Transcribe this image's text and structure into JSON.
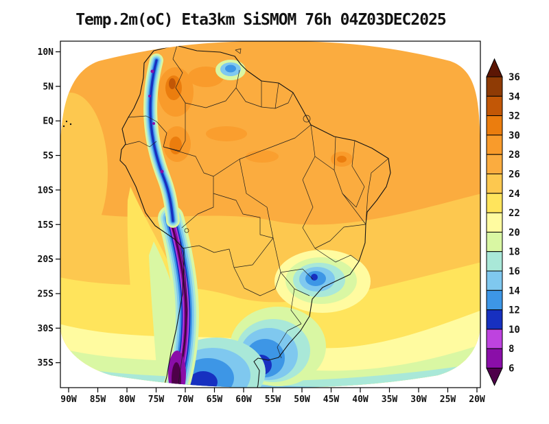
{
  "title": "Temp.2m(oC) Eta3km SiSMOM 76h 04Z03DEC2025",
  "axes": {
    "lat_labels": [
      "10N",
      "5N",
      "EQ",
      "5S",
      "10S",
      "15S",
      "20S",
      "25S",
      "30S",
      "35S"
    ],
    "lon_labels": [
      "90W",
      "85W",
      "80W",
      "75W",
      "70W",
      "65W",
      "60W",
      "55W",
      "50W",
      "45W",
      "40W",
      "35W",
      "30W",
      "25W",
      "20W"
    ]
  },
  "colorbar": {
    "tick_labels": [
      "36",
      "34",
      "32",
      "30",
      "28",
      "26",
      "24",
      "22",
      "20",
      "18",
      "16",
      "14",
      "12",
      "10",
      "8",
      "6"
    ],
    "colors_top_to_bottom": [
      "#5C1604",
      "#8F3B05",
      "#C25706",
      "#EB7D0E",
      "#F99B2B",
      "#FBAC3F",
      "#FDC84F",
      "#FFE45C",
      "#FFFBA0",
      "#D9F7A3",
      "#A9E8D8",
      "#7FC8EF",
      "#3D96E6",
      "#1730C0",
      "#BE43DF",
      "#8A0EA8",
      "#4E004A"
    ]
  },
  "chart_data": {
    "type": "heatmap",
    "title": "Temp.2m(oC) Eta3km SiSMOM 76h 04Z03DEC2025",
    "variable": "Temp.2m (oC)",
    "model": "Eta3km",
    "system": "SiSMOM",
    "forecast_hour": "76h",
    "valid_time": "04Z03DEC2025",
    "x_tick_labels": [
      "90W",
      "85W",
      "80W",
      "75W",
      "70W",
      "65W",
      "60W",
      "55W",
      "50W",
      "45W",
      "40W",
      "35W",
      "30W",
      "25W",
      "20W"
    ],
    "y_tick_labels": [
      "10N",
      "5N",
      "EQ",
      "5S",
      "10S",
      "15S",
      "20S",
      "25S",
      "30S",
      "35S"
    ],
    "colorbar_levels": [
      36,
      34,
      32,
      30,
      28,
      26,
      24,
      22,
      20,
      18,
      16,
      14,
      12,
      10,
      8,
      6
    ],
    "colorbar_colors_top_to_bottom": [
      "#5C1604",
      "#8F3B05",
      "#C25706",
      "#EB7D0E",
      "#F99B2B",
      "#FBAC3F",
      "#FDC84F",
      "#FFE45C",
      "#FFFBA0",
      "#D9F7A3",
      "#A9E8D8",
      "#7FC8EF",
      "#3D96E6",
      "#1730C0",
      "#BE43DF",
      "#8A0EA8",
      "#4E004A"
    ],
    "legend_position": "right",
    "grid": false
  }
}
